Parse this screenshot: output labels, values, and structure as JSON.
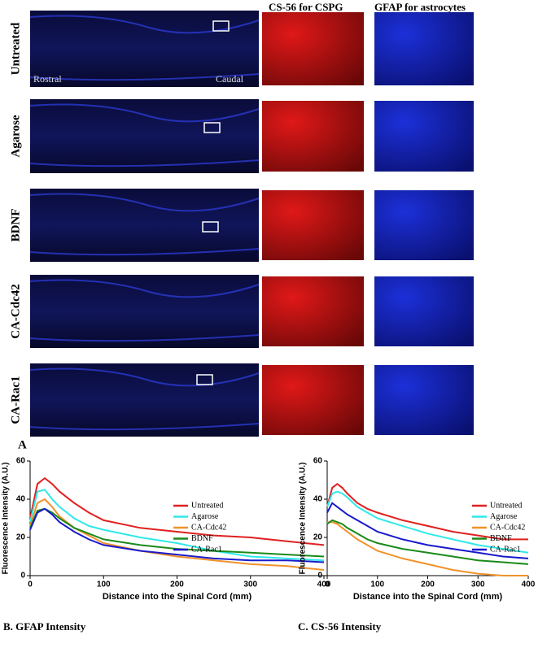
{
  "panel_a": {
    "label": "A",
    "column_headers": [
      "CS-56 for CSPG",
      "GFAP for astrocytes"
    ],
    "rows": [
      "Untreated",
      "Agarose",
      "BDNF",
      "CA-Cdc42",
      "CA-Rac1"
    ],
    "rostral": "Rostral",
    "caudal": "Caudal"
  },
  "chart_data": [
    {
      "type": "line",
      "caption": "B.  GFAP Intensity",
      "x_label": "Distance into the Spinal Cord (mm)",
      "y_label": "Fluorescence Intensity (A.U.)",
      "x": [
        0,
        10,
        20,
        30,
        40,
        60,
        80,
        100,
        150,
        200,
        250,
        300,
        350,
        400
      ],
      "xlim": [
        0,
        400
      ],
      "xticks": [
        0,
        100,
        200,
        300,
        400
      ],
      "ylim": [
        0,
        60
      ],
      "yticks": [
        0,
        20,
        40,
        60
      ],
      "series": [
        {
          "name": "Untreated",
          "color": "#e02020",
          "values": [
            30,
            48,
            51,
            48,
            44,
            38,
            33,
            29,
            25,
            23,
            21,
            20,
            18,
            16
          ]
        },
        {
          "name": "Agarose",
          "color": "#30e8e8",
          "values": [
            28,
            44,
            45,
            40,
            36,
            30,
            26,
            24,
            20,
            17,
            13,
            10,
            9,
            8
          ]
        },
        {
          "name": "CA-Cdc42",
          "color": "#f0922a",
          "values": [
            26,
            38,
            40,
            36,
            31,
            25,
            21,
            17,
            13,
            10,
            8,
            6,
            5,
            3
          ]
        },
        {
          "name": "BDNF",
          "color": "#1a8a1a",
          "values": [
            25,
            34,
            35,
            33,
            30,
            25,
            22,
            19,
            16,
            14,
            13,
            12,
            11,
            10
          ]
        },
        {
          "name": "CA-Rac1",
          "color": "#1a1acc",
          "values": [
            24,
            33,
            35,
            32,
            28,
            23,
            19,
            16,
            13,
            11,
            9,
            8,
            8,
            7
          ]
        }
      ]
    },
    {
      "type": "line",
      "caption": "C.  CS-56 Intensity",
      "x_label": "Distance into the Spinal Cord (mm)",
      "y_label": "Fluorescence Intensity (A.U.)",
      "x": [
        0,
        10,
        20,
        30,
        40,
        60,
        80,
        100,
        150,
        200,
        250,
        300,
        350,
        400
      ],
      "xlim": [
        0,
        400
      ],
      "xticks": [
        0,
        100,
        200,
        300,
        400
      ],
      "ylim": [
        0,
        60
      ],
      "yticks": [
        0,
        20,
        40,
        60
      ],
      "series": [
        {
          "name": "Untreated",
          "color": "#e02020",
          "values": [
            36,
            46,
            48,
            46,
            43,
            38,
            35,
            33,
            29,
            26,
            23,
            21,
            19,
            19
          ]
        },
        {
          "name": "Agarose",
          "color": "#30e8e8",
          "values": [
            36,
            43,
            44,
            43,
            41,
            36,
            33,
            30,
            26,
            22,
            19,
            16,
            14,
            12
          ]
        },
        {
          "name": "CA-Cdc42",
          "color": "#f0922a",
          "values": [
            28,
            28,
            27,
            25,
            23,
            19,
            16,
            13,
            9,
            6,
            3,
            1,
            0,
            0
          ]
        },
        {
          "name": "BDNF",
          "color": "#1a8a1a",
          "values": [
            27,
            29,
            28,
            27,
            25,
            22,
            19,
            17,
            14,
            12,
            10,
            8,
            7,
            6
          ]
        },
        {
          "name": "CA-Rac1",
          "color": "#1a1acc",
          "values": [
            33,
            38,
            36,
            34,
            32,
            29,
            26,
            23,
            19,
            16,
            14,
            12,
            10,
            9
          ]
        }
      ]
    }
  ]
}
